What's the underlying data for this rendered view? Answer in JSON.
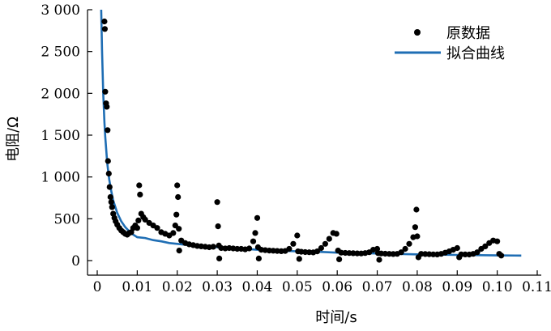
{
  "chart_data": {
    "type": "scatter",
    "xlabel": "时间/s",
    "ylabel": "电阻/Ω",
    "xlim": [
      0,
      0.11
    ],
    "ylim": [
      0,
      3000
    ],
    "x_ticks": [
      "0",
      "0.01",
      "0.02",
      "0.03",
      "0.04",
      "0.05",
      "0.06",
      "0.07",
      "0.08",
      "0.09",
      "0.10",
      "0.11"
    ],
    "y_ticks": [
      "0",
      "500",
      "1 000",
      "1 500",
      "2 000",
      "2 500",
      "3 000"
    ],
    "grid": false,
    "legend_position": "top-right",
    "series": [
      {
        "name": "原数据",
        "kind": "scatter",
        "color": "#000000",
        "points": [
          [
            0.0018,
            2860
          ],
          [
            0.0019,
            2770
          ],
          [
            0.002,
            2020
          ],
          [
            0.0022,
            1880
          ],
          [
            0.0024,
            1840
          ],
          [
            0.0026,
            1560
          ],
          [
            0.0027,
            1190
          ],
          [
            0.0029,
            1040
          ],
          [
            0.0031,
            880
          ],
          [
            0.0033,
            760
          ],
          [
            0.0035,
            700
          ],
          [
            0.0037,
            640
          ],
          [
            0.004,
            560
          ],
          [
            0.0043,
            510
          ],
          [
            0.0046,
            470
          ],
          [
            0.005,
            430
          ],
          [
            0.0055,
            390
          ],
          [
            0.006,
            360
          ],
          [
            0.0065,
            340
          ],
          [
            0.007,
            320
          ],
          [
            0.0075,
            310
          ],
          [
            0.008,
            330
          ],
          [
            0.0085,
            340
          ],
          [
            0.009,
            390
          ],
          [
            0.0095,
            420
          ],
          [
            0.01,
            390
          ],
          [
            0.0103,
            480
          ],
          [
            0.0105,
            900
          ],
          [
            0.0107,
            790
          ],
          [
            0.011,
            560
          ],
          [
            0.0115,
            520
          ],
          [
            0.012,
            490
          ],
          [
            0.013,
            450
          ],
          [
            0.014,
            420
          ],
          [
            0.015,
            390
          ],
          [
            0.016,
            340
          ],
          [
            0.017,
            320
          ],
          [
            0.018,
            300
          ],
          [
            0.019,
            330
          ],
          [
            0.0195,
            420
          ],
          [
            0.0198,
            550
          ],
          [
            0.02,
            900
          ],
          [
            0.0202,
            760
          ],
          [
            0.0204,
            380
          ],
          [
            0.0205,
            120
          ],
          [
            0.021,
            240
          ],
          [
            0.022,
            210
          ],
          [
            0.023,
            195
          ],
          [
            0.024,
            185
          ],
          [
            0.025,
            175
          ],
          [
            0.026,
            170
          ],
          [
            0.027,
            165
          ],
          [
            0.028,
            160
          ],
          [
            0.029,
            165
          ],
          [
            0.03,
            700
          ],
          [
            0.0302,
            410
          ],
          [
            0.0304,
            180
          ],
          [
            0.0305,
            25
          ],
          [
            0.031,
            150
          ],
          [
            0.032,
            145
          ],
          [
            0.033,
            150
          ],
          [
            0.034,
            145
          ],
          [
            0.035,
            140
          ],
          [
            0.036,
            140
          ],
          [
            0.037,
            135
          ],
          [
            0.038,
            145
          ],
          [
            0.039,
            230
          ],
          [
            0.0395,
            330
          ],
          [
            0.04,
            510
          ],
          [
            0.0402,
            160
          ],
          [
            0.0404,
            25
          ],
          [
            0.041,
            130
          ],
          [
            0.042,
            125
          ],
          [
            0.043,
            120
          ],
          [
            0.044,
            118
          ],
          [
            0.045,
            115
          ],
          [
            0.046,
            112
          ],
          [
            0.047,
            115
          ],
          [
            0.048,
            140
          ],
          [
            0.049,
            200
          ],
          [
            0.05,
            300
          ],
          [
            0.0502,
            110
          ],
          [
            0.0505,
            20
          ],
          [
            0.051,
            105
          ],
          [
            0.052,
            102
          ],
          [
            0.053,
            100
          ],
          [
            0.054,
            98
          ],
          [
            0.055,
            110
          ],
          [
            0.056,
            150
          ],
          [
            0.057,
            200
          ],
          [
            0.058,
            260
          ],
          [
            0.059,
            330
          ],
          [
            0.0598,
            320
          ],
          [
            0.0602,
            120
          ],
          [
            0.0605,
            15
          ],
          [
            0.061,
            95
          ],
          [
            0.062,
            92
          ],
          [
            0.063,
            90
          ],
          [
            0.064,
            88
          ],
          [
            0.065,
            86
          ],
          [
            0.066,
            85
          ],
          [
            0.067,
            90
          ],
          [
            0.068,
            100
          ],
          [
            0.069,
            130
          ],
          [
            0.07,
            140
          ],
          [
            0.0702,
            90
          ],
          [
            0.0705,
            10
          ],
          [
            0.071,
            85
          ],
          [
            0.072,
            82
          ],
          [
            0.073,
            80
          ],
          [
            0.074,
            78
          ],
          [
            0.075,
            80
          ],
          [
            0.076,
            100
          ],
          [
            0.077,
            140
          ],
          [
            0.078,
            200
          ],
          [
            0.079,
            280
          ],
          [
            0.0795,
            400
          ],
          [
            0.0798,
            610
          ],
          [
            0.08,
            290
          ],
          [
            0.0803,
            40
          ],
          [
            0.081,
            80
          ],
          [
            0.082,
            78
          ],
          [
            0.083,
            76
          ],
          [
            0.084,
            75
          ],
          [
            0.085,
            74
          ],
          [
            0.086,
            80
          ],
          [
            0.087,
            95
          ],
          [
            0.088,
            110
          ],
          [
            0.089,
            130
          ],
          [
            0.09,
            150
          ],
          [
            0.0905,
            40
          ],
          [
            0.091,
            75
          ],
          [
            0.092,
            74
          ],
          [
            0.093,
            73
          ],
          [
            0.094,
            80
          ],
          [
            0.095,
            100
          ],
          [
            0.096,
            140
          ],
          [
            0.097,
            170
          ],
          [
            0.098,
            210
          ],
          [
            0.099,
            240
          ],
          [
            0.1,
            230
          ],
          [
            0.1005,
            80
          ],
          [
            0.101,
            60
          ]
        ]
      },
      {
        "name": "拟合曲线",
        "kind": "line",
        "color": "#1f6eb4",
        "points": [
          [
            0.001,
            3000
          ],
          [
            0.0012,
            2520
          ],
          [
            0.0015,
            2000
          ],
          [
            0.0018,
            1650
          ],
          [
            0.002,
            1480
          ],
          [
            0.0025,
            1170
          ],
          [
            0.003,
            970
          ],
          [
            0.0035,
            830
          ],
          [
            0.004,
            720
          ],
          [
            0.005,
            570
          ],
          [
            0.006,
            470
          ],
          [
            0.007,
            400
          ],
          [
            0.008,
            350
          ],
          [
            0.009,
            310
          ],
          [
            0.01,
            280
          ],
          [
            0.012,
            270
          ],
          [
            0.014,
            245
          ],
          [
            0.016,
            230
          ],
          [
            0.018,
            210
          ],
          [
            0.02,
            200
          ],
          [
            0.025,
            175
          ],
          [
            0.03,
            160
          ],
          [
            0.035,
            145
          ],
          [
            0.04,
            130
          ],
          [
            0.045,
            120
          ],
          [
            0.05,
            110
          ],
          [
            0.055,
            105
          ],
          [
            0.06,
            95
          ],
          [
            0.07,
            85
          ],
          [
            0.08,
            75
          ],
          [
            0.09,
            68
          ],
          [
            0.1,
            62
          ],
          [
            0.106,
            60
          ]
        ]
      }
    ]
  }
}
